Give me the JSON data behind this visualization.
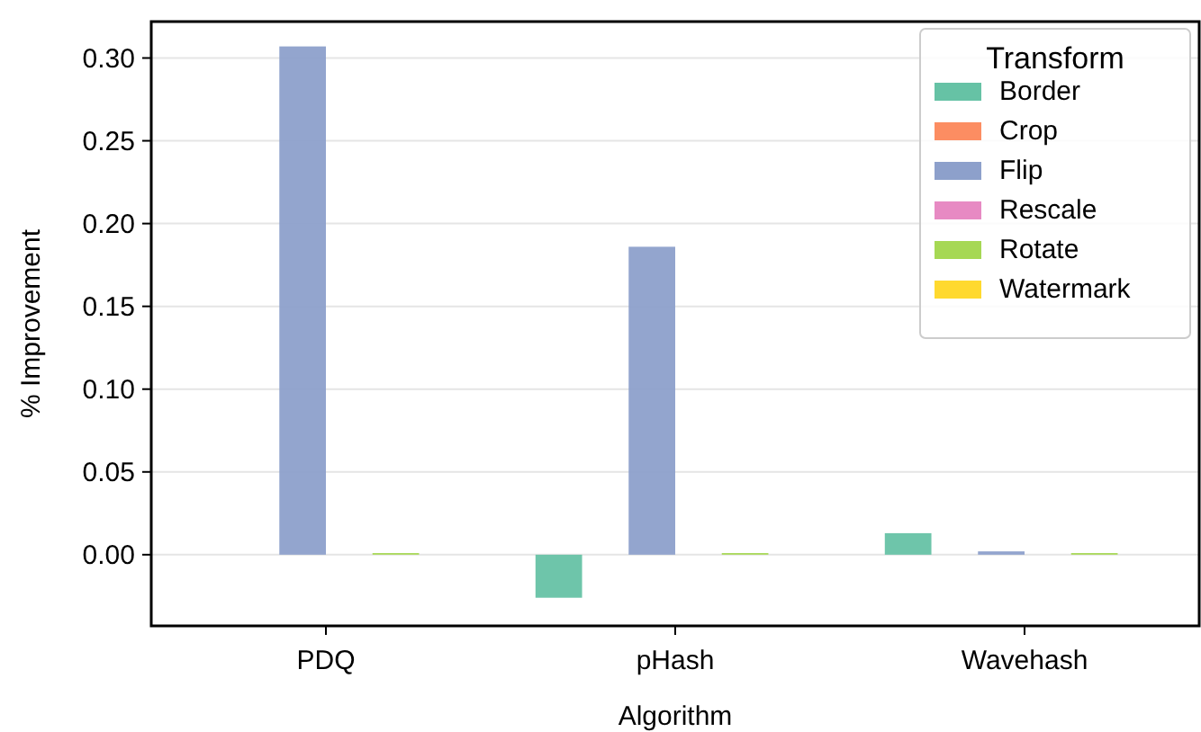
{
  "chart_data": {
    "type": "bar",
    "xlabel": "Algorithm",
    "ylabel": "% Improvement",
    "legend_title": "Transform",
    "categories": [
      "PDQ",
      "pHash",
      "Wavehash"
    ],
    "series": [
      {
        "name": "Border",
        "color": "#66c2a5",
        "values": [
          0,
          -0.026,
          0.013
        ]
      },
      {
        "name": "Crop",
        "color": "#fc8d62",
        "values": [
          0,
          0,
          0
        ]
      },
      {
        "name": "Flip",
        "color": "#8da0cb",
        "values": [
          0.307,
          0.186,
          0.002
        ]
      },
      {
        "name": "Rescale",
        "color": "#e78ac3",
        "values": [
          0,
          0,
          0
        ]
      },
      {
        "name": "Rotate",
        "color": "#a6d854",
        "values": [
          0.001,
          0.001,
          0.001
        ]
      },
      {
        "name": "Watermark",
        "color": "#ffd92f",
        "values": [
          0,
          0,
          0
        ]
      }
    ],
    "ylim": [
      -0.043,
      0.322
    ],
    "yticks": [
      {
        "value": 0,
        "label": "0.00"
      },
      {
        "value": 0.05,
        "label": "0.05"
      },
      {
        "value": 0.1,
        "label": "0.10"
      },
      {
        "value": 0.15,
        "label": "0.15"
      },
      {
        "value": 0.2,
        "label": "0.20"
      },
      {
        "value": 0.25,
        "label": "0.25"
      },
      {
        "value": 0.3,
        "label": "0.30"
      }
    ],
    "grid": "y",
    "legend": "top right"
  }
}
